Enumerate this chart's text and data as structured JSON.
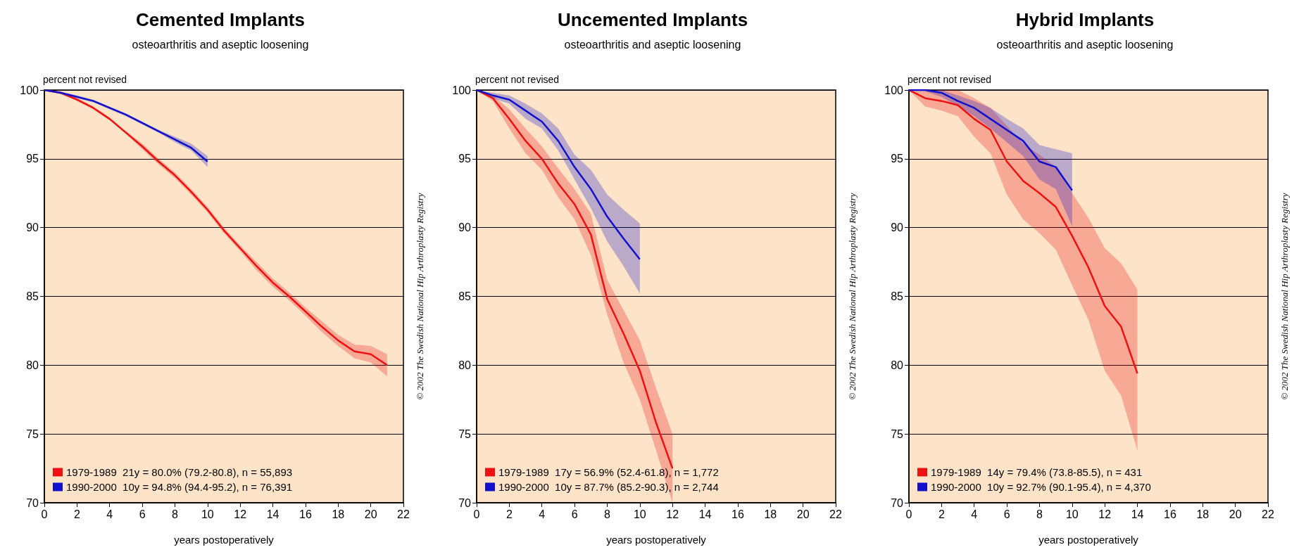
{
  "chart_data": [
    {
      "type": "line",
      "title": "Cemented Implants",
      "subtitle": "osteoarthritis and aseptic loosening",
      "xlabel": "years postoperatively",
      "ylabel": "percent not revised",
      "annotations": [
        "© 2002 The Swedish National Hip Arthroplasty Registry"
      ],
      "xlim": [
        0,
        22
      ],
      "xticks": [
        0,
        2,
        4,
        6,
        8,
        10,
        12,
        14,
        16,
        18,
        20,
        22
      ],
      "ylim": [
        70,
        100
      ],
      "yticks": [
        70,
        75,
        80,
        85,
        90,
        95,
        100
      ],
      "grid": "y",
      "legend": "bottom left",
      "series": [
        {
          "name": "1979-1989  21y = 80.0% (79.2-80.8), n = 55,893",
          "color": "#ee1111",
          "x": [
            0,
            1,
            2,
            3,
            4,
            5,
            6,
            7,
            8,
            9,
            10,
            11,
            12,
            13,
            14,
            15,
            16,
            17,
            18,
            19,
            20,
            21
          ],
          "values": [
            100,
            99.8,
            99.3,
            98.7,
            97.9,
            96.9,
            95.9,
            94.8,
            93.8,
            92.6,
            91.3,
            89.8,
            88.5,
            87.2,
            86.0,
            85.0,
            83.9,
            82.8,
            81.8,
            81.0,
            80.8,
            80.0
          ],
          "lower": [
            100,
            99.7,
            99.2,
            98.6,
            97.8,
            96.8,
            95.7,
            94.6,
            93.6,
            92.4,
            91.1,
            89.6,
            88.3,
            86.9,
            85.7,
            84.7,
            83.6,
            82.4,
            81.4,
            80.5,
            80.2,
            79.2
          ],
          "upper": [
            100,
            99.9,
            99.4,
            98.8,
            98.0,
            97.0,
            96.1,
            95.0,
            94.0,
            92.8,
            91.5,
            90.0,
            88.7,
            87.5,
            86.3,
            85.3,
            84.2,
            83.2,
            82.2,
            81.5,
            81.4,
            80.8
          ]
        },
        {
          "name": "1990-2000  10y = 94.8% (94.4-95.2), n = 76,391",
          "color": "#1111cc",
          "x": [
            0,
            1,
            2,
            3,
            4,
            5,
            6,
            7,
            8,
            9,
            10
          ],
          "values": [
            100,
            99.8,
            99.5,
            99.2,
            98.7,
            98.2,
            97.6,
            97.0,
            96.4,
            95.8,
            94.8
          ],
          "lower": [
            100,
            99.7,
            99.4,
            99.1,
            98.6,
            98.1,
            97.5,
            96.9,
            96.2,
            95.6,
            94.4
          ],
          "upper": [
            100,
            99.9,
            99.6,
            99.3,
            98.8,
            98.3,
            97.7,
            97.1,
            96.6,
            96.1,
            95.2
          ]
        }
      ]
    },
    {
      "type": "line",
      "title": "Uncemented Implants",
      "subtitle": "osteoarthritis and aseptic loosening",
      "xlabel": "years postoperatively",
      "ylabel": "percent not revised",
      "annotations": [
        "© 2002 The Swedish National Hip Arthroplasty Registry"
      ],
      "xlim": [
        0,
        22
      ],
      "xticks": [
        0,
        2,
        4,
        6,
        8,
        10,
        12,
        14,
        16,
        18,
        20,
        22
      ],
      "ylim": [
        70,
        100
      ],
      "yticks": [
        70,
        75,
        80,
        85,
        90,
        95,
        100
      ],
      "grid": "y",
      "legend": "bottom left",
      "series": [
        {
          "name": "1979-1989  17y = 56.9% (52.4-61.8), n = 1,772",
          "color": "#ee1111",
          "x": [
            0,
            1,
            2,
            3,
            4,
            5,
            6,
            7,
            8,
            9,
            10,
            11,
            12
          ],
          "values": [
            100,
            99.4,
            97.9,
            96.3,
            95.0,
            93.2,
            91.7,
            89.5,
            84.8,
            82.3,
            79.6,
            75.8,
            72.5
          ],
          "lower": [
            100,
            99.2,
            97.2,
            95.4,
            94.2,
            92.2,
            90.6,
            88.0,
            83.7,
            80.2,
            77.5,
            73.8,
            70.0
          ],
          "upper": [
            100,
            99.6,
            98.6,
            97.2,
            95.9,
            94.3,
            92.8,
            91.0,
            86.2,
            84.0,
            81.8,
            78.3,
            75.0
          ]
        },
        {
          "name": "1990-2000  10y = 87.7% (85.2-90.3), n = 2,744",
          "color": "#1111cc",
          "x": [
            0,
            1,
            2,
            3,
            4,
            5,
            6,
            7,
            8,
            9,
            10
          ],
          "values": [
            100,
            99.6,
            99.3,
            98.5,
            97.7,
            96.3,
            94.4,
            92.8,
            90.8,
            89.2,
            87.7
          ],
          "lower": [
            100,
            99.4,
            99.0,
            97.9,
            97.2,
            95.6,
            93.5,
            91.4,
            89.0,
            87.2,
            85.2
          ],
          "upper": [
            100,
            99.8,
            99.6,
            99.0,
            98.3,
            97.2,
            95.3,
            94.2,
            92.4,
            91.3,
            90.3
          ]
        }
      ]
    },
    {
      "type": "line",
      "title": "Hybrid Implants",
      "subtitle": "osteoarthritis and aseptic loosening",
      "xlabel": "years postoperatively",
      "ylabel": "percent not revised",
      "annotations": [
        "© 2002 The Swedish National Hip Arthroplasty Registry"
      ],
      "xlim": [
        0,
        22
      ],
      "xticks": [
        0,
        2,
        4,
        6,
        8,
        10,
        12,
        14,
        16,
        18,
        20,
        22
      ],
      "ylim": [
        70,
        100
      ],
      "yticks": [
        70,
        75,
        80,
        85,
        90,
        95,
        100
      ],
      "grid": "y",
      "legend": "bottom left",
      "series": [
        {
          "name": "1979-1989  14y = 79.4% (73.8-85.5), n = 431",
          "color": "#ee1111",
          "x": [
            0,
            1,
            2,
            3,
            4,
            5,
            6,
            7,
            8,
            9,
            10,
            11,
            12,
            13,
            14
          ],
          "values": [
            100,
            99.4,
            99.2,
            98.9,
            97.9,
            97.1,
            94.8,
            93.4,
            92.5,
            91.5,
            89.4,
            87.1,
            84.3,
            82.8,
            79.4
          ],
          "lower": [
            100,
            98.8,
            98.5,
            98.1,
            96.6,
            95.4,
            92.4,
            90.6,
            89.6,
            88.4,
            85.8,
            83.3,
            79.6,
            77.8,
            73.8
          ],
          "upper": [
            100,
            99.9,
            100,
            100,
            99.4,
            98.7,
            97.4,
            96.1,
            95.3,
            94.4,
            92.5,
            90.7,
            88.5,
            87.4,
            85.5
          ]
        },
        {
          "name": "1990-2000  10y = 92.7% (90.1-95.4), n = 4,370",
          "color": "#1111cc",
          "x": [
            0,
            1,
            2,
            3,
            4,
            5,
            6,
            7,
            8,
            9,
            10
          ],
          "values": [
            100,
            100,
            99.8,
            99.2,
            98.7,
            97.9,
            97.1,
            96.3,
            94.8,
            94.4,
            92.7
          ],
          "lower": [
            100,
            99.9,
            99.5,
            98.8,
            98.1,
            97.2,
            96.2,
            95.2,
            93.5,
            92.8,
            90.1
          ],
          "upper": [
            100,
            100,
            100,
            99.6,
            99.2,
            98.7,
            97.9,
            97.2,
            96.0,
            95.7,
            95.4
          ]
        }
      ]
    }
  ]
}
